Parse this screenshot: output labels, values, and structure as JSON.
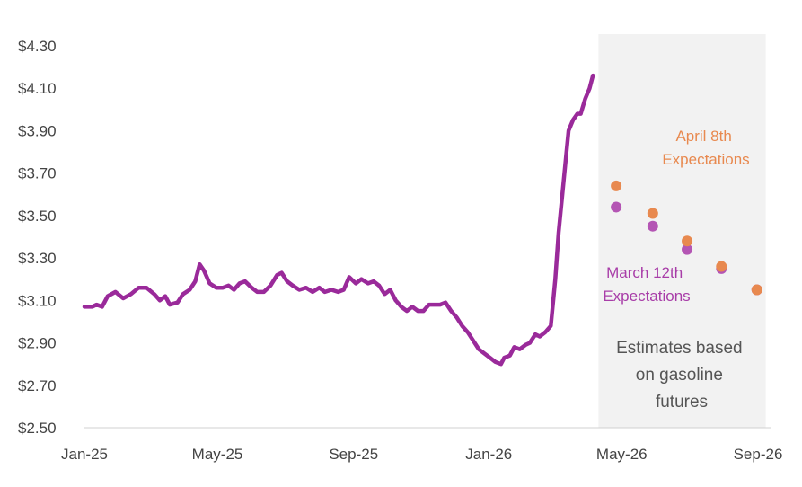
{
  "chart_data": {
    "type": "line",
    "title": "",
    "xlabel": "",
    "ylabel": "",
    "ylim": [
      2.5,
      4.3
    ],
    "y_ticks": [
      "$4.30",
      "$4.10",
      "$3.90",
      "$3.70",
      "$3.50",
      "$3.30",
      "$3.10",
      "$2.90",
      "$2.70",
      "$2.50"
    ],
    "x_ticks": [
      "Jan-25",
      "May-25",
      "Sep-25",
      "Jan-26",
      "May-26",
      "Sep-26"
    ],
    "x_range": [
      "2025-01-01",
      "2026-09-01"
    ],
    "grid": false,
    "forecast_region": {
      "start": "2026-04-10",
      "end": "2026-09-08",
      "color": "#f2f2f2"
    },
    "series": [
      {
        "color": "#9a2a9a",
        "points": [
          [
            "2025-01-01",
            3.07
          ],
          [
            "2025-01-08",
            3.07
          ],
          [
            "2025-01-12",
            3.08
          ],
          [
            "2025-01-17",
            3.07
          ],
          [
            "2025-01-22",
            3.12
          ],
          [
            "2025-01-29",
            3.14
          ],
          [
            "2025-02-05",
            3.11
          ],
          [
            "2025-02-12",
            3.13
          ],
          [
            "2025-02-19",
            3.16
          ],
          [
            "2025-02-26",
            3.16
          ],
          [
            "2025-03-05",
            3.13
          ],
          [
            "2025-03-10",
            3.1
          ],
          [
            "2025-03-15",
            3.12
          ],
          [
            "2025-03-19",
            3.08
          ],
          [
            "2025-03-26",
            3.09
          ],
          [
            "2025-03-31",
            3.13
          ],
          [
            "2025-04-06",
            3.15
          ],
          [
            "2025-04-11",
            3.19
          ],
          [
            "2025-04-15",
            3.27
          ],
          [
            "2025-04-19",
            3.24
          ],
          [
            "2025-04-24",
            3.18
          ],
          [
            "2025-04-30",
            3.16
          ],
          [
            "2025-05-06",
            3.16
          ],
          [
            "2025-05-11",
            3.17
          ],
          [
            "2025-05-16",
            3.15
          ],
          [
            "2025-05-21",
            3.18
          ],
          [
            "2025-05-26",
            3.19
          ],
          [
            "2025-06-01",
            3.16
          ],
          [
            "2025-06-06",
            3.14
          ],
          [
            "2025-06-12",
            3.14
          ],
          [
            "2025-06-18",
            3.17
          ],
          [
            "2025-06-24",
            3.22
          ],
          [
            "2025-06-28",
            3.23
          ],
          [
            "2025-07-03",
            3.19
          ],
          [
            "2025-07-08",
            3.17
          ],
          [
            "2025-07-14",
            3.15
          ],
          [
            "2025-07-20",
            3.16
          ],
          [
            "2025-07-26",
            3.14
          ],
          [
            "2025-08-01",
            3.16
          ],
          [
            "2025-08-06",
            3.14
          ],
          [
            "2025-08-12",
            3.15
          ],
          [
            "2025-08-18",
            3.14
          ],
          [
            "2025-08-23",
            3.15
          ],
          [
            "2025-08-28",
            3.21
          ],
          [
            "2025-09-03",
            3.18
          ],
          [
            "2025-09-08",
            3.2
          ],
          [
            "2025-09-14",
            3.18
          ],
          [
            "2025-09-19",
            3.19
          ],
          [
            "2025-09-24",
            3.17
          ],
          [
            "2025-09-29",
            3.13
          ],
          [
            "2025-10-04",
            3.15
          ],
          [
            "2025-10-09",
            3.1
          ],
          [
            "2025-10-14",
            3.07
          ],
          [
            "2025-10-19",
            3.05
          ],
          [
            "2025-10-24",
            3.07
          ],
          [
            "2025-10-29",
            3.05
          ],
          [
            "2025-11-03",
            3.05
          ],
          [
            "2025-11-08",
            3.08
          ],
          [
            "2025-11-13",
            3.08
          ],
          [
            "2025-11-18",
            3.08
          ],
          [
            "2025-11-23",
            3.09
          ],
          [
            "2025-11-28",
            3.05
          ],
          [
            "2025-12-03",
            3.02
          ],
          [
            "2025-12-08",
            2.98
          ],
          [
            "2025-12-13",
            2.95
          ],
          [
            "2025-12-18",
            2.91
          ],
          [
            "2025-12-23",
            2.87
          ],
          [
            "2025-12-28",
            2.85
          ],
          [
            "2026-01-02",
            2.83
          ],
          [
            "2026-01-07",
            2.81
          ],
          [
            "2026-01-12",
            2.8
          ],
          [
            "2026-01-15",
            2.83
          ],
          [
            "2026-01-20",
            2.84
          ],
          [
            "2026-01-24",
            2.88
          ],
          [
            "2026-01-29",
            2.87
          ],
          [
            "2026-02-03",
            2.89
          ],
          [
            "2026-02-07",
            2.9
          ],
          [
            "2026-02-12",
            2.94
          ],
          [
            "2026-02-16",
            2.93
          ],
          [
            "2026-02-21",
            2.95
          ],
          [
            "2026-02-26",
            2.98
          ],
          [
            "2026-03-02",
            3.2
          ],
          [
            "2026-03-05",
            3.42
          ],
          [
            "2026-03-08",
            3.58
          ],
          [
            "2026-03-11",
            3.74
          ],
          [
            "2026-03-14",
            3.9
          ],
          [
            "2026-03-18",
            3.95
          ],
          [
            "2026-03-22",
            3.98
          ],
          [
            "2026-03-25",
            3.98
          ],
          [
            "2026-03-29",
            4.05
          ],
          [
            "2026-04-02",
            4.1
          ],
          [
            "2026-04-05",
            4.16
          ]
        ]
      },
      {
        "name": "March 12th Expectations",
        "color": "#b455b4",
        "points": [
          [
            "2026-04-26",
            3.54
          ],
          [
            "2026-05-29",
            3.45
          ],
          [
            "2026-06-29",
            3.34
          ],
          [
            "2026-07-30",
            3.25
          ],
          [
            "2026-08-31",
            3.15
          ]
        ]
      },
      {
        "name": "April 8th Expectations",
        "color": "#e8894f",
        "points": [
          [
            "2026-04-26",
            3.64
          ],
          [
            "2026-05-29",
            3.51
          ],
          [
            "2026-06-29",
            3.38
          ],
          [
            "2026-07-30",
            3.26
          ],
          [
            "2026-08-31",
            3.15
          ]
        ]
      }
    ],
    "annotations": {
      "april_label": [
        "April 8th",
        "Expectations"
      ],
      "march_label": [
        "March 12th",
        "Expectations"
      ],
      "note": [
        "Estimates based",
        "on gasoline",
        "futures"
      ]
    }
  }
}
